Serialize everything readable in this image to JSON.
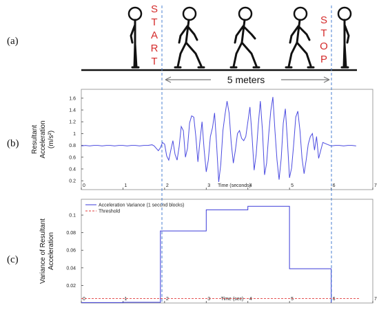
{
  "panel_labels": [
    "(a)",
    "(b)",
    "(c)"
  ],
  "walk": {
    "start_text": "START",
    "stop_text": "STOP",
    "distance_label": "5 meters"
  },
  "chart_data": [
    {
      "type": "line",
      "xlabel": "Time (seconds)",
      "ylabel": "Resultant Acceleration (m/s²)",
      "ylabel_lines": [
        "Resultant",
        "Acceleration",
        "(m/s²)"
      ],
      "xlim": [
        0,
        7
      ],
      "ylim": [
        0.05,
        1.75
      ],
      "xticks": [
        0,
        1,
        2,
        3,
        4,
        5,
        6,
        7
      ],
      "yticks": [
        0.2,
        0.4,
        0.6,
        0.8,
        1,
        1.2,
        1.4,
        1.6
      ],
      "vlines": [
        1.92,
        6.0
      ],
      "series": [
        {
          "color": "#4a4ae0",
          "x": [
            0,
            0.1,
            0.2,
            0.3,
            0.4,
            0.5,
            0.6,
            0.7,
            0.8,
            0.9,
            1.0,
            1.1,
            1.2,
            1.3,
            1.4,
            1.5,
            1.6,
            1.7,
            1.75,
            1.8,
            1.85,
            1.9,
            1.95,
            2.0,
            2.05,
            2.1,
            2.15,
            2.2,
            2.25,
            2.3,
            2.35,
            2.4,
            2.45,
            2.5,
            2.55,
            2.6,
            2.65,
            2.7,
            2.75,
            2.8,
            2.85,
            2.9,
            2.95,
            3.0,
            3.05,
            3.1,
            3.15,
            3.2,
            3.25,
            3.3,
            3.35,
            3.4,
            3.45,
            3.5,
            3.55,
            3.6,
            3.65,
            3.7,
            3.75,
            3.8,
            3.85,
            3.9,
            3.95,
            4.0,
            4.05,
            4.1,
            4.15,
            4.2,
            4.25,
            4.3,
            4.35,
            4.4,
            4.45,
            4.5,
            4.55,
            4.6,
            4.65,
            4.7,
            4.75,
            4.8,
            4.85,
            4.9,
            4.95,
            5.0,
            5.05,
            5.1,
            5.15,
            5.2,
            5.25,
            5.3,
            5.35,
            5.4,
            5.45,
            5.5,
            5.55,
            5.6,
            5.65,
            5.7,
            5.8,
            5.9,
            6.0,
            6.1,
            6.2,
            6.3,
            6.4,
            6.5,
            6.6
          ],
          "y": [
            0.79,
            0.8,
            0.79,
            0.8,
            0.8,
            0.79,
            0.8,
            0.8,
            0.79,
            0.8,
            0.8,
            0.79,
            0.8,
            0.8,
            0.79,
            0.8,
            0.8,
            0.81,
            0.79,
            0.75,
            0.71,
            0.76,
            0.85,
            0.82,
            0.62,
            0.55,
            0.72,
            0.88,
            0.65,
            0.55,
            0.78,
            1.12,
            1.05,
            0.6,
            0.75,
            1.18,
            1.3,
            1.28,
            0.95,
            0.52,
            0.88,
            1.2,
            0.72,
            0.35,
            0.55,
            0.95,
            1.1,
            1.35,
            0.8,
            0.18,
            0.48,
            1.05,
            1.32,
            1.55,
            1.35,
            0.85,
            0.5,
            0.72,
            1.0,
            1.05,
            0.92,
            0.88,
            0.95,
            1.2,
            1.45,
            0.95,
            0.38,
            0.65,
            1.15,
            1.55,
            1.05,
            0.3,
            0.5,
            0.98,
            1.38,
            1.62,
            1.05,
            0.55,
            0.22,
            0.58,
            1.18,
            1.42,
            0.88,
            0.25,
            0.42,
            0.82,
            1.28,
            1.38,
            1.05,
            0.58,
            0.32,
            0.55,
            0.82,
            0.95,
            1.0,
            0.72,
            0.95,
            0.58,
            0.85,
            0.82,
            0.79,
            0.8,
            0.8,
            0.79,
            0.8,
            0.8,
            0.79
          ]
        }
      ]
    },
    {
      "type": "line",
      "xlabel": "Time (sec)",
      "ylabel": "Variance of Resultant Acceleration",
      "ylabel_lines": [
        "Variance of Resultant",
        "Acceleration"
      ],
      "xlim": [
        0,
        7
      ],
      "ylim": [
        0,
        0.118
      ],
      "xticks": [
        0,
        1,
        2,
        3,
        4,
        5,
        6,
        7
      ],
      "yticks": [
        0.02,
        0.04,
        0.06,
        0.08,
        0.1
      ],
      "vlines": [
        6.0
      ],
      "legend": "top-left",
      "series": [
        {
          "name": "Acceleration Variance (1 second blocks)",
          "color": "#3a3ad8",
          "style": "solid",
          "x": [
            0.0,
            1.0,
            1.0,
            1.9,
            1.9,
            3.0,
            3.0,
            4.0,
            4.0,
            5.0,
            5.0,
            6.0,
            6.0
          ],
          "y": [
            0.0005,
            0.0005,
            0.0008,
            0.0008,
            0.082,
            0.082,
            0.106,
            0.106,
            0.11,
            0.11,
            0.039,
            0.039,
            0.0005
          ]
        },
        {
          "name": "Threshold",
          "color": "#e03a3a",
          "style": "dashed",
          "x": [
            0,
            6.7
          ],
          "y": [
            0.005,
            0.005
          ]
        }
      ]
    }
  ]
}
